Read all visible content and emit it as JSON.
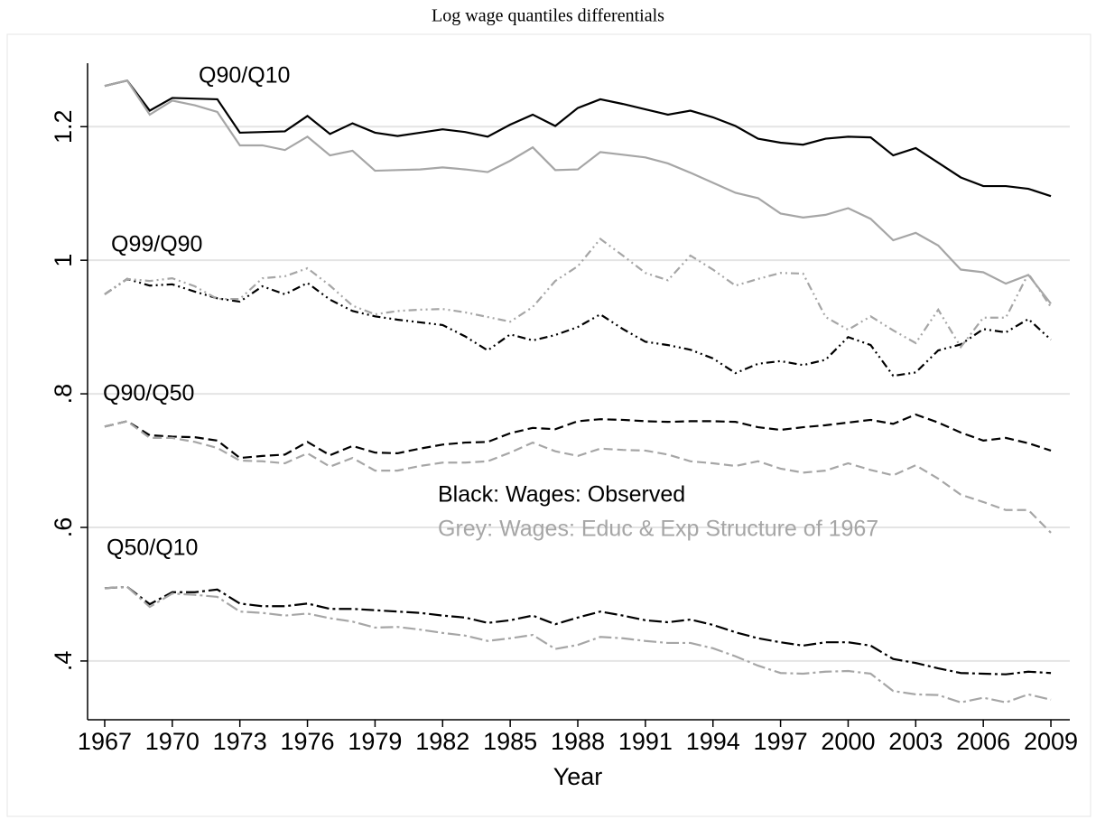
{
  "chart_data": {
    "type": "line",
    "title": "Log wage quantiles differentials",
    "xlabel": "Year",
    "annotations": [
      "Q90/Q10",
      "Q99/Q90",
      "Q90/Q50",
      "Q50/Q10"
    ],
    "notes": [
      {
        "text": "Black: Wages: Observed",
        "color": "#000000"
      },
      {
        "text": "Grey: Wages: Educ & Exp Structure of  1967",
        "color": "#a6a6a6"
      }
    ],
    "x": [
      1967,
      1968,
      1969,
      1970,
      1971,
      1972,
      1973,
      1974,
      1975,
      1976,
      1977,
      1978,
      1979,
      1980,
      1981,
      1982,
      1983,
      1984,
      1985,
      1986,
      1987,
      1988,
      1989,
      1990,
      1991,
      1992,
      1993,
      1994,
      1995,
      1996,
      1997,
      1998,
      1999,
      2000,
      2001,
      2002,
      2003,
      2004,
      2005,
      2006,
      2007,
      2008,
      2009
    ],
    "xlim": [
      1966.24,
      2009.84
    ],
    "xticks": [
      1967,
      1970,
      1973,
      1976,
      1979,
      1982,
      1985,
      1988,
      1991,
      1994,
      1997,
      2000,
      2003,
      2006,
      2009
    ],
    "ylim": [
      0.312,
      1.295
    ],
    "yticks": [
      {
        "value": 0.4,
        "label": ".4"
      },
      {
        "value": 0.6,
        "label": ".6"
      },
      {
        "value": 0.8,
        "label": ".8"
      },
      1,
      1.2
    ],
    "grid": true,
    "series": [
      {
        "color": "#000000",
        "dash": "solid",
        "values": [
          1.261,
          1.269,
          1.224,
          1.243,
          1.242,
          1.241,
          1.191,
          1.192,
          1.193,
          1.216,
          1.189,
          1.205,
          1.191,
          1.186,
          1.191,
          1.196,
          1.192,
          1.185,
          1.203,
          1.218,
          1.201,
          1.228,
          1.241,
          1.234,
          1.226,
          1.218,
          1.224,
          1.214,
          1.201,
          1.182,
          1.176,
          1.173,
          1.182,
          1.185,
          1.184,
          1.157,
          1.168,
          1.146,
          1.124,
          1.111,
          1.111,
          1.107,
          1.096
        ]
      },
      {
        "color": "#a6a6a6",
        "dash": "solid",
        "values": [
          1.261,
          1.269,
          1.218,
          1.239,
          1.232,
          1.222,
          1.172,
          1.172,
          1.165,
          1.185,
          1.157,
          1.164,
          1.134,
          1.135,
          1.136,
          1.139,
          1.136,
          1.132,
          1.149,
          1.169,
          1.135,
          1.136,
          1.162,
          1.158,
          1.154,
          1.145,
          1.131,
          1.116,
          1.101,
          1.093,
          1.07,
          1.064,
          1.068,
          1.078,
          1.062,
          1.03,
          1.041,
          1.022,
          0.986,
          0.982,
          0.965,
          0.978,
          0.935
        ]
      },
      {
        "color": "#000000",
        "dash": "dashdotdot",
        "values": [
          0.949,
          0.972,
          0.962,
          0.964,
          0.953,
          0.943,
          0.938,
          0.961,
          0.949,
          0.966,
          0.941,
          0.924,
          0.916,
          0.911,
          0.907,
          0.903,
          0.886,
          0.865,
          0.889,
          0.88,
          0.888,
          0.9,
          0.919,
          0.897,
          0.878,
          0.873,
          0.866,
          0.853,
          0.831,
          0.845,
          0.849,
          0.843,
          0.851,
          0.885,
          0.873,
          0.827,
          0.832,
          0.865,
          0.874,
          0.897,
          0.892,
          0.912,
          0.881
        ]
      },
      {
        "color": "#a6a6a6",
        "dash": "dashdotdot",
        "values": [
          0.949,
          0.972,
          0.969,
          0.973,
          0.961,
          0.942,
          0.942,
          0.973,
          0.976,
          0.988,
          0.962,
          0.932,
          0.919,
          0.924,
          0.926,
          0.927,
          0.922,
          0.915,
          0.908,
          0.93,
          0.969,
          0.991,
          1.032,
          1.007,
          0.981,
          0.97,
          1.007,
          0.986,
          0.962,
          0.972,
          0.981,
          0.98,
          0.915,
          0.896,
          0.916,
          0.895,
          0.876,
          0.926,
          0.87,
          0.914,
          0.914,
          0.98,
          0.93
        ]
      },
      {
        "color": "#000000",
        "dash": "dash",
        "values": [
          0.751,
          0.759,
          0.738,
          0.736,
          0.735,
          0.73,
          0.704,
          0.707,
          0.709,
          0.728,
          0.708,
          0.722,
          0.712,
          0.711,
          0.718,
          0.724,
          0.727,
          0.728,
          0.741,
          0.749,
          0.747,
          0.759,
          0.762,
          0.761,
          0.759,
          0.758,
          0.759,
          0.759,
          0.758,
          0.75,
          0.746,
          0.75,
          0.753,
          0.757,
          0.761,
          0.755,
          0.769,
          0.757,
          0.742,
          0.73,
          0.734,
          0.726,
          0.715
        ]
      },
      {
        "color": "#a6a6a6",
        "dash": "dash",
        "values": [
          0.751,
          0.759,
          0.734,
          0.734,
          0.728,
          0.719,
          0.7,
          0.699,
          0.696,
          0.711,
          0.691,
          0.704,
          0.685,
          0.685,
          0.692,
          0.697,
          0.697,
          0.699,
          0.712,
          0.727,
          0.714,
          0.707,
          0.718,
          0.716,
          0.715,
          0.709,
          0.699,
          0.696,
          0.692,
          0.699,
          0.688,
          0.682,
          0.685,
          0.696,
          0.686,
          0.678,
          0.693,
          0.673,
          0.649,
          0.638,
          0.626,
          0.626,
          0.592
        ]
      },
      {
        "color": "#000000",
        "dash": "longdashdot",
        "values": [
          0.509,
          0.511,
          0.485,
          0.503,
          0.503,
          0.507,
          0.486,
          0.482,
          0.482,
          0.486,
          0.478,
          0.478,
          0.476,
          0.474,
          0.472,
          0.468,
          0.465,
          0.457,
          0.461,
          0.468,
          0.455,
          0.465,
          0.474,
          0.468,
          0.461,
          0.458,
          0.462,
          0.454,
          0.443,
          0.434,
          0.428,
          0.423,
          0.428,
          0.428,
          0.423,
          0.403,
          0.397,
          0.389,
          0.382,
          0.381,
          0.38,
          0.384,
          0.382
        ]
      },
      {
        "color": "#a6a6a6",
        "dash": "longdashdot",
        "values": [
          0.509,
          0.511,
          0.481,
          0.501,
          0.499,
          0.496,
          0.474,
          0.472,
          0.468,
          0.471,
          0.464,
          0.459,
          0.45,
          0.451,
          0.447,
          0.442,
          0.438,
          0.43,
          0.434,
          0.439,
          0.418,
          0.424,
          0.436,
          0.434,
          0.43,
          0.427,
          0.427,
          0.419,
          0.407,
          0.393,
          0.382,
          0.381,
          0.384,
          0.385,
          0.381,
          0.355,
          0.35,
          0.349,
          0.338,
          0.345,
          0.338,
          0.35,
          0.342
        ]
      }
    ]
  }
}
